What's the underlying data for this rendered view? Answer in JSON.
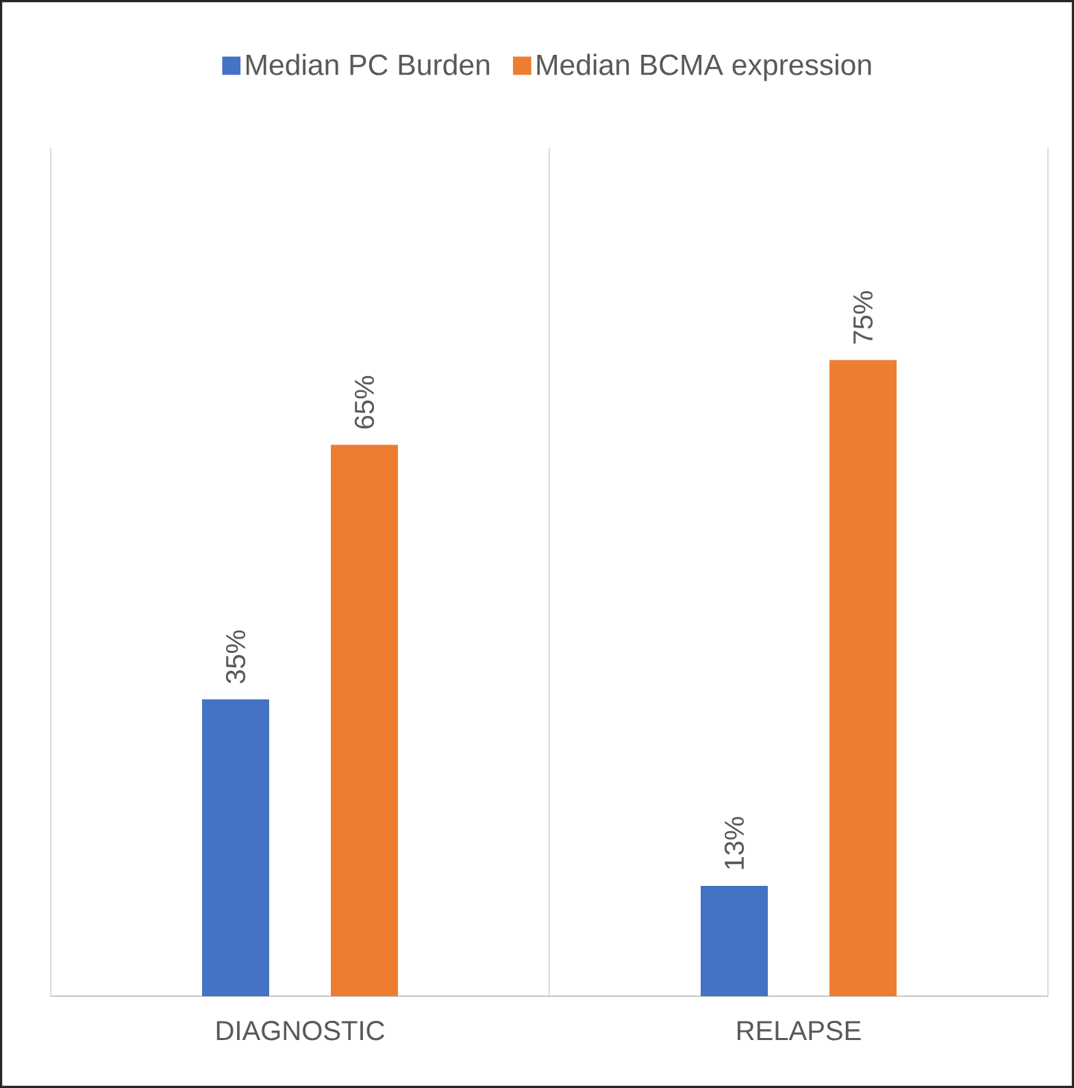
{
  "chart_data": {
    "type": "bar",
    "categories": [
      "DIAGNOSTIC",
      "RELAPSE"
    ],
    "series": [
      {
        "name": "Median PC Burden",
        "color": "#4472c4",
        "values": [
          35,
          13
        ],
        "value_labels": [
          "35%",
          "13%"
        ]
      },
      {
        "name": "Median BCMA expression",
        "color": "#ed7d31",
        "values": [
          65,
          75
        ],
        "value_labels": [
          "65%",
          "75%"
        ]
      }
    ],
    "grid": "x",
    "legend": "top"
  }
}
